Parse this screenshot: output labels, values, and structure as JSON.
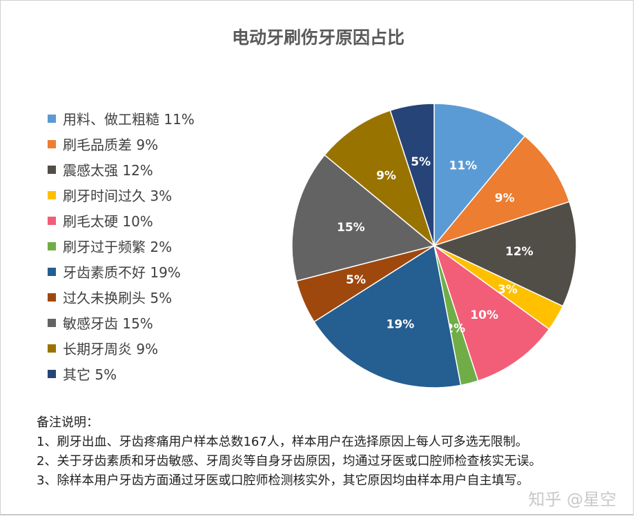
{
  "chart_data": {
    "type": "pie",
    "title": "电动牙刷伤牙原因占比",
    "legend_position": "left",
    "slices": [
      {
        "label": "用料、做工粗糙",
        "value": 11,
        "color": "#5B9BD5"
      },
      {
        "label": "刷毛品质差",
        "value": 9,
        "color": "#ED7D31"
      },
      {
        "label": "震感太强",
        "value": 12,
        "color": "#514E48"
      },
      {
        "label": "刷牙时间过久",
        "value": 3,
        "color": "#FFC000"
      },
      {
        "label": "刷毛太硬",
        "value": 10,
        "color": "#F25E78"
      },
      {
        "label": "刷牙过于频繁",
        "value": 2,
        "color": "#70AD47"
      },
      {
        "label": "牙齿素质不好",
        "value": 19,
        "color": "#255E91"
      },
      {
        "label": "过久未换刷头",
        "value": 5,
        "color": "#9E480E"
      },
      {
        "label": "敏感牙齿",
        "value": 15,
        "color": "#636363"
      },
      {
        "label": "长期牙周炎",
        "value": 9,
        "color": "#997300"
      },
      {
        "label": "其它",
        "value": 5,
        "color": "#264478"
      }
    ]
  },
  "notes": {
    "heading": "备注说明：",
    "lines": [
      "1、刷牙出血、牙齿疼痛用户样本总数167人，样本用户在选择原因上每人可多选无限制。",
      "2、关于牙齿素质和牙齿敏感、牙周炎等自身牙齿原因，均通过牙医或口腔师检查核实无误。",
      "3、除样本用户牙齿方面通过牙医或口腔师检测核实外，其它原因均由样本用户自主填写。"
    ]
  },
  "watermark": "知乎 @星空"
}
